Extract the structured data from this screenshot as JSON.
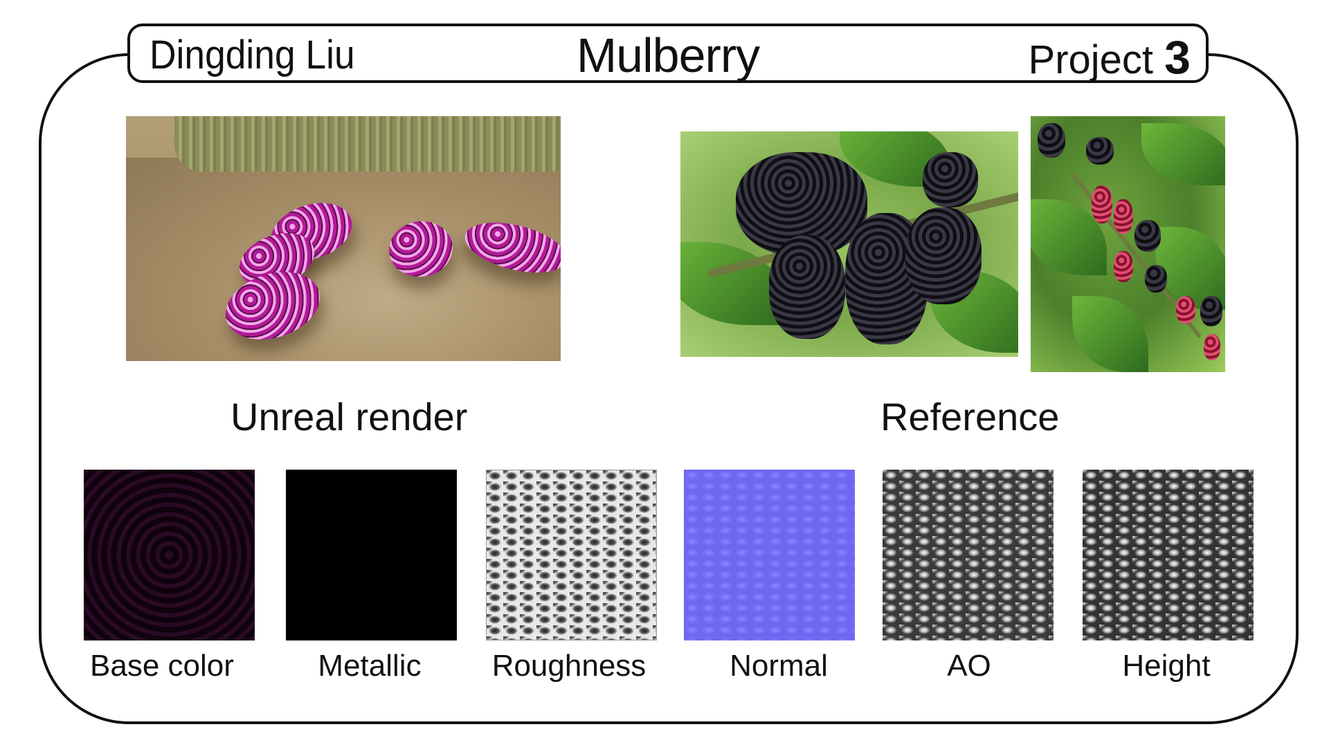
{
  "header": {
    "author": "Dingding Liu",
    "title": "Mulberry",
    "project_label": "Project",
    "project_number": "3"
  },
  "sections": {
    "render_caption": "Unreal render",
    "reference_caption": "Reference"
  },
  "texture_maps": [
    {
      "label": "Base color",
      "icon": "base-color-map",
      "color": "#1a0618"
    },
    {
      "label": "Metallic",
      "icon": "metallic-map",
      "color": "#000000"
    },
    {
      "label": "Roughness",
      "icon": "roughness-map",
      "color": "#d8d8d8"
    },
    {
      "label": "Normal",
      "icon": "normal-map",
      "color": "#7b74f4"
    },
    {
      "label": "AO",
      "icon": "ao-map",
      "color": "#6a6a6a"
    },
    {
      "label": "Height",
      "icon": "height-map",
      "color": "#5a5a5a"
    }
  ]
}
